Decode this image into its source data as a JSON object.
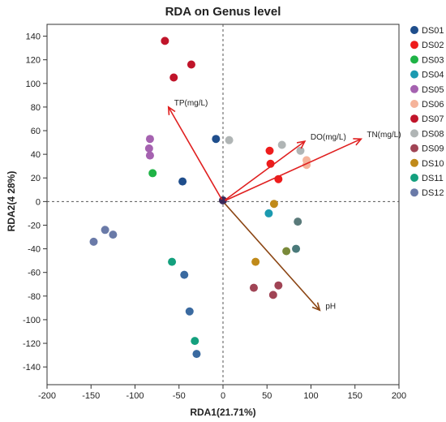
{
  "chart_data": {
    "type": "scatter",
    "title": "RDA on Genus level",
    "xlabel": "RDA1(21.71%)",
    "ylabel": "RDA2(4 28%)",
    "xlim": [
      -200,
      200
    ],
    "ylim": [
      -155,
      150
    ],
    "xticks": [
      -200,
      -150,
      -100,
      -50,
      0,
      50,
      100,
      150,
      200
    ],
    "yticks": [
      -140,
      -120,
      -100,
      -80,
      -60,
      -40,
      -20,
      0,
      20,
      40,
      60,
      80,
      100,
      120,
      140
    ],
    "grid": false,
    "zero_lines": true,
    "legend_placement": "right",
    "series": [
      {
        "name": "DS01",
        "color": "#1f4e8c",
        "points": [
          [
            -8,
            53
          ],
          [
            -46,
            17
          ]
        ]
      },
      {
        "name": "DS02",
        "color": "#ee1c1c",
        "points": [
          [
            53,
            43
          ],
          [
            54,
            32
          ],
          [
            63,
            19
          ]
        ]
      },
      {
        "name": "DS03",
        "color": "#1fb346",
        "points": [
          [
            -80,
            24
          ]
        ]
      },
      {
        "name": "DS04",
        "color": "#1b9ab0",
        "points": [
          [
            52,
            -10
          ]
        ]
      },
      {
        "name": "DS05",
        "color": "#a562b0",
        "points": [
          [
            -83,
            53
          ],
          [
            -84,
            45
          ],
          [
            -83,
            39
          ]
        ]
      },
      {
        "name": "DS06",
        "color": "#f5b39a",
        "points": [
          [
            95,
            35
          ],
          [
            95,
            31
          ]
        ]
      },
      {
        "name": "DS07",
        "color": "#c0142a",
        "points": [
          [
            -66,
            136
          ],
          [
            -36,
            116
          ],
          [
            -56,
            105
          ]
        ]
      },
      {
        "name": "DS08",
        "color": "#b0b5b5",
        "points": [
          [
            7,
            52
          ],
          [
            67,
            48
          ],
          [
            88,
            43
          ]
        ]
      },
      {
        "name": "DS09",
        "color": "#a04455",
        "points": [
          [
            35,
            -73
          ],
          [
            63,
            -71
          ],
          [
            57,
            -79
          ]
        ]
      },
      {
        "name": "DS10",
        "color": "#c08a1a",
        "points": [
          [
            58,
            -2
          ],
          [
            37,
            -51
          ]
        ]
      },
      {
        "name": "DS11",
        "color": "#14a07e",
        "points": [
          [
            -58,
            -51
          ],
          [
            -32,
            -118
          ]
        ]
      },
      {
        "name": "DS12",
        "color": "#6a7aa8",
        "points": [
          [
            -134,
            -24
          ],
          [
            -125,
            -28
          ],
          [
            -147,
            -34
          ]
        ]
      }
    ],
    "overlap_points": [
      {
        "color": "#5a7a7a",
        "point": [
          85,
          -17
        ]
      },
      {
        "color": "#4a7a7a",
        "point": [
          83,
          -40
        ]
      },
      {
        "color": "#7a8a3a",
        "point": [
          72,
          -42
        ]
      },
      {
        "color": "#3a6aa0",
        "point": [
          -44,
          -62
        ]
      },
      {
        "color": "#3a6aa0",
        "point": [
          -38,
          -93
        ]
      },
      {
        "color": "#3a6aa0",
        "point": [
          -30,
          -129
        ]
      },
      {
        "color": "#3a2a5a",
        "point": [
          0,
          1
        ]
      }
    ],
    "vectors": [
      {
        "label": "TP(mg/L)",
        "color": "#e02020",
        "end": [
          -62,
          80
        ]
      },
      {
        "label": "DO(mg/L)",
        "color": "#e02020",
        "end": [
          93,
          51
        ]
      },
      {
        "label": "TN(mg/L)",
        "color": "#e02020",
        "end": [
          157,
          53
        ]
      },
      {
        "label": "pH",
        "color": "#8b4513",
        "end": [
          110,
          -92
        ]
      }
    ]
  }
}
